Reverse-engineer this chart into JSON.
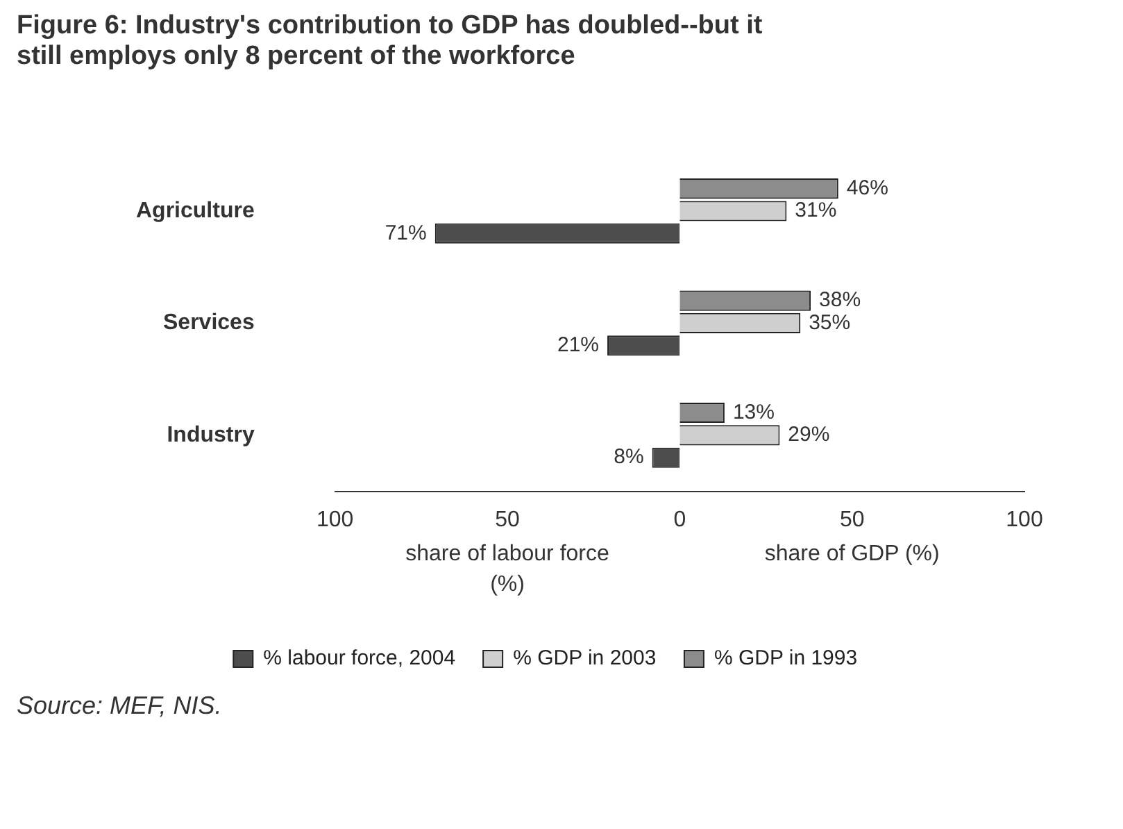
{
  "chart_data": {
    "type": "bar",
    "orientation": "horizontal",
    "title": "Figure 6:  Industry's contribution to GDP has doubled--but it still employs only 8 percent of the workforce",
    "categories": [
      "Agriculture",
      "Services",
      "Industry"
    ],
    "series": [
      {
        "name": "% GDP in 1993",
        "color": "#8c8c8c",
        "values": [
          46,
          38,
          13
        ],
        "value_labels": [
          "46%",
          "38%",
          "13%"
        ]
      },
      {
        "name": "% GDP in 2003",
        "color": "#cfcfcf",
        "values": [
          31,
          35,
          29
        ],
        "value_labels": [
          "31%",
          "35%",
          "29%"
        ]
      },
      {
        "name": "% labour force, 2004",
        "color": "#4d4d4d",
        "values": [
          71,
          21,
          8
        ],
        "base": [
          -71,
          -21,
          -8
        ],
        "value_labels": [
          "71%",
          "21%",
          "8%"
        ]
      }
    ],
    "xlim": [
      -100,
      100
    ],
    "xticks": [
      {
        "value": -100,
        "label": "100"
      },
      {
        "value": -50,
        "label": "50"
      },
      0,
      50,
      100
    ],
    "xlabel": "share of labour force (%)",
    "annotations": [
      "share of GDP (%)",
      "Source: MEF, NIS."
    ],
    "grid": false,
    "legend": "bottom"
  }
}
